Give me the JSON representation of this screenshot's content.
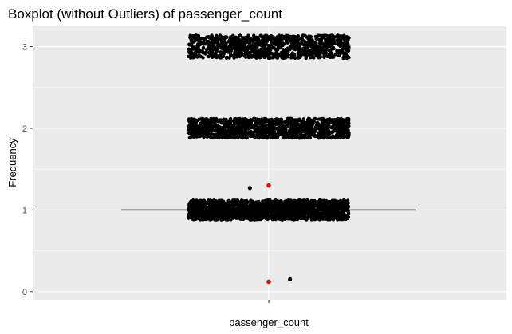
{
  "chart_data": {
    "type": "boxplot",
    "title": "Boxplot (without Outliers) of  passenger_count",
    "xlabel": "passenger_count",
    "ylabel": "Frequency",
    "x_category": "",
    "ylim": [
      -0.1,
      3.25
    ],
    "y_ticks": [
      0,
      1,
      2,
      3
    ],
    "y_tick_labels": [
      "0",
      "1",
      "2",
      "3"
    ],
    "grid": true,
    "box": {
      "min": 1,
      "q1": 1,
      "median": 1,
      "q3": 1,
      "max": 1,
      "whisker_x_span": [
        -1.25,
        1.25
      ]
    },
    "jitter_bands": [
      {
        "value": 1,
        "count": 1800,
        "spread_y": 0.12,
        "spread_x": [
          -0.68,
          0.68
        ]
      },
      {
        "value": 2,
        "count": 1200,
        "spread_y": 0.12,
        "spread_x": [
          -0.68,
          0.68
        ]
      },
      {
        "value": 3,
        "count": 1000,
        "spread_y": 0.14,
        "spread_x": [
          -0.68,
          0.68
        ]
      }
    ],
    "extra_points": [
      {
        "x": -0.16,
        "y": 1.27,
        "color": "#000000"
      },
      {
        "x": 0.18,
        "y": 0.15,
        "color": "#000000"
      }
    ],
    "mean_points": [
      {
        "x": 0.0,
        "y": 1.3,
        "color": "#ff0000"
      },
      {
        "x": 0.0,
        "y": 0.12,
        "color": "#ff0000"
      }
    ],
    "colors": {
      "panel_bg": "#ebebeb",
      "grid_major": "#ffffff",
      "points": "#000000",
      "mean": "#ff0000",
      "text": "#000000",
      "tick_text": "#4d4d4d"
    }
  }
}
